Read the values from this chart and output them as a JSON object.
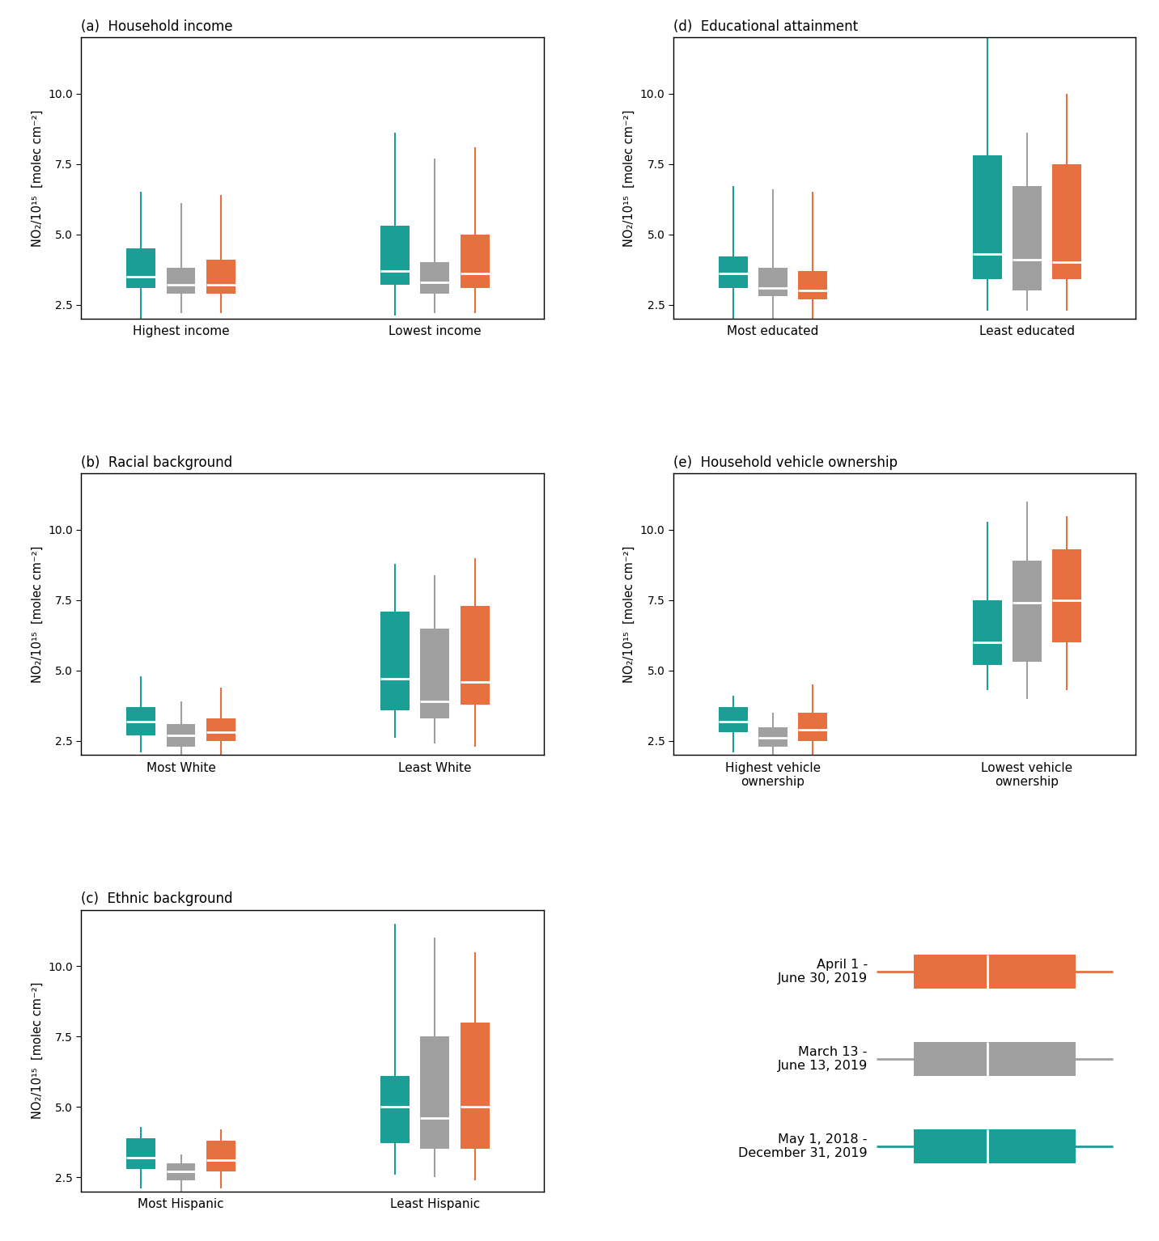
{
  "colors": {
    "teal": "#1a9e96",
    "gray": "#a0a0a0",
    "orange": "#e87040"
  },
  "panels": {
    "a": {
      "title": "(a)  Household income",
      "groups": [
        "Highest income",
        "Lowest income"
      ],
      "series": {
        "teal": [
          {
            "whisker_lo": 2.0,
            "q1": 3.1,
            "median": 3.5,
            "q3": 4.5,
            "whisker_hi": 6.5
          },
          {
            "whisker_lo": 2.1,
            "q1": 3.2,
            "median": 3.7,
            "q3": 5.3,
            "whisker_hi": 8.6
          }
        ],
        "gray": [
          {
            "whisker_lo": 2.2,
            "q1": 2.9,
            "median": 3.2,
            "q3": 3.8,
            "whisker_hi": 6.1
          },
          {
            "whisker_lo": 2.2,
            "q1": 2.9,
            "median": 3.3,
            "q3": 4.0,
            "whisker_hi": 7.7
          }
        ],
        "orange": [
          {
            "whisker_lo": 2.2,
            "q1": 2.9,
            "median": 3.2,
            "q3": 4.1,
            "whisker_hi": 6.4
          },
          {
            "whisker_lo": 2.2,
            "q1": 3.1,
            "median": 3.6,
            "q3": 5.0,
            "whisker_hi": 8.1
          }
        ]
      },
      "ylim": [
        2.0,
        12.0
      ],
      "yticks": [
        2.5,
        5.0,
        7.5,
        10.0
      ]
    },
    "b": {
      "title": "(b)  Racial background",
      "groups": [
        "Most White",
        "Least White"
      ],
      "series": {
        "teal": [
          {
            "whisker_lo": 2.1,
            "q1": 2.7,
            "median": 3.2,
            "q3": 3.7,
            "whisker_hi": 4.8
          },
          {
            "whisker_lo": 2.6,
            "q1": 3.6,
            "median": 4.7,
            "q3": 7.1,
            "whisker_hi": 8.8
          }
        ],
        "gray": [
          {
            "whisker_lo": 1.9,
            "q1": 2.3,
            "median": 2.7,
            "q3": 3.1,
            "whisker_hi": 3.9
          },
          {
            "whisker_lo": 2.4,
            "q1": 3.3,
            "median": 3.9,
            "q3": 6.5,
            "whisker_hi": 8.4
          }
        ],
        "orange": [
          {
            "whisker_lo": 1.9,
            "q1": 2.5,
            "median": 2.8,
            "q3": 3.3,
            "whisker_hi": 4.4
          },
          {
            "whisker_lo": 2.3,
            "q1": 3.8,
            "median": 4.6,
            "q3": 7.3,
            "whisker_hi": 9.0
          }
        ]
      },
      "ylim": [
        2.0,
        12.0
      ],
      "yticks": [
        2.5,
        5.0,
        7.5,
        10.0
      ]
    },
    "c": {
      "title": "(c)  Ethnic background",
      "groups": [
        "Most Hispanic",
        "Least Hispanic"
      ],
      "series": {
        "teal": [
          {
            "whisker_lo": 2.1,
            "q1": 2.8,
            "median": 3.2,
            "q3": 3.9,
            "whisker_hi": 4.3
          },
          {
            "whisker_lo": 2.6,
            "q1": 3.7,
            "median": 5.0,
            "q3": 6.1,
            "whisker_hi": 11.5
          }
        ],
        "gray": [
          {
            "whisker_lo": 1.9,
            "q1": 2.4,
            "median": 2.7,
            "q3": 3.0,
            "whisker_hi": 3.3
          },
          {
            "whisker_lo": 2.5,
            "q1": 3.5,
            "median": 4.6,
            "q3": 7.5,
            "whisker_hi": 11.0
          }
        ],
        "orange": [
          {
            "whisker_lo": 2.1,
            "q1": 2.7,
            "median": 3.1,
            "q3": 3.8,
            "whisker_hi": 4.2
          },
          {
            "whisker_lo": 2.4,
            "q1": 3.5,
            "median": 5.0,
            "q3": 8.0,
            "whisker_hi": 10.5
          }
        ]
      },
      "ylim": [
        2.0,
        12.0
      ],
      "yticks": [
        2.5,
        5.0,
        7.5,
        10.0
      ]
    },
    "d": {
      "title": "(d)  Educational attainment",
      "groups": [
        "Most educated",
        "Least educated"
      ],
      "series": {
        "teal": [
          {
            "whisker_lo": 2.0,
            "q1": 3.1,
            "median": 3.6,
            "q3": 4.2,
            "whisker_hi": 6.7
          },
          {
            "whisker_lo": 2.3,
            "q1": 3.4,
            "median": 4.3,
            "q3": 7.8,
            "whisker_hi": 12.0
          }
        ],
        "gray": [
          {
            "whisker_lo": 2.0,
            "q1": 2.8,
            "median": 3.1,
            "q3": 3.8,
            "whisker_hi": 6.6
          },
          {
            "whisker_lo": 2.3,
            "q1": 3.0,
            "median": 4.1,
            "q3": 6.7,
            "whisker_hi": 8.6
          }
        ],
        "orange": [
          {
            "whisker_lo": 1.9,
            "q1": 2.7,
            "median": 3.0,
            "q3": 3.7,
            "whisker_hi": 6.5
          },
          {
            "whisker_lo": 2.3,
            "q1": 3.4,
            "median": 4.0,
            "q3": 7.5,
            "whisker_hi": 10.0
          }
        ]
      },
      "ylim": [
        2.0,
        12.0
      ],
      "yticks": [
        2.5,
        5.0,
        7.5,
        10.0
      ]
    },
    "e": {
      "title": "(e)  Household vehicle ownership",
      "groups": [
        "Highest vehicle\nownership",
        "Lowest vehicle\nownership"
      ],
      "series": {
        "teal": [
          {
            "whisker_lo": 2.1,
            "q1": 2.8,
            "median": 3.2,
            "q3": 3.7,
            "whisker_hi": 4.1
          },
          {
            "whisker_lo": 4.3,
            "q1": 5.2,
            "median": 6.0,
            "q3": 7.5,
            "whisker_hi": 10.3
          }
        ],
        "gray": [
          {
            "whisker_lo": 1.9,
            "q1": 2.3,
            "median": 2.6,
            "q3": 3.0,
            "whisker_hi": 3.5
          },
          {
            "whisker_lo": 4.0,
            "q1": 5.3,
            "median": 7.4,
            "q3": 8.9,
            "whisker_hi": 11.0
          }
        ],
        "orange": [
          {
            "whisker_lo": 1.9,
            "q1": 2.5,
            "median": 2.9,
            "q3": 3.5,
            "whisker_hi": 4.5
          },
          {
            "whisker_lo": 4.3,
            "q1": 6.0,
            "median": 7.5,
            "q3": 9.3,
            "whisker_hi": 10.5
          }
        ]
      },
      "ylim": [
        2.0,
        12.0
      ],
      "yticks": [
        2.5,
        5.0,
        7.5,
        10.0
      ]
    }
  },
  "legend": {
    "entries": [
      {
        "label": "April 1 -\nJune 30, 2019",
        "color": "orange"
      },
      {
        "label": "March 13 -\nJune 13, 2019",
        "color": "gray"
      },
      {
        "label": "May 1, 2018 -\nDecember 31, 2019",
        "color": "teal"
      }
    ]
  },
  "ylabel": "NO₂/10¹⁵  [molec cm⁻²]",
  "group_centers": [
    1.0,
    2.4
  ],
  "offsets": [
    -0.22,
    0.0,
    0.22
  ],
  "box_width": 0.16,
  "xlim": [
    0.45,
    3.0
  ]
}
